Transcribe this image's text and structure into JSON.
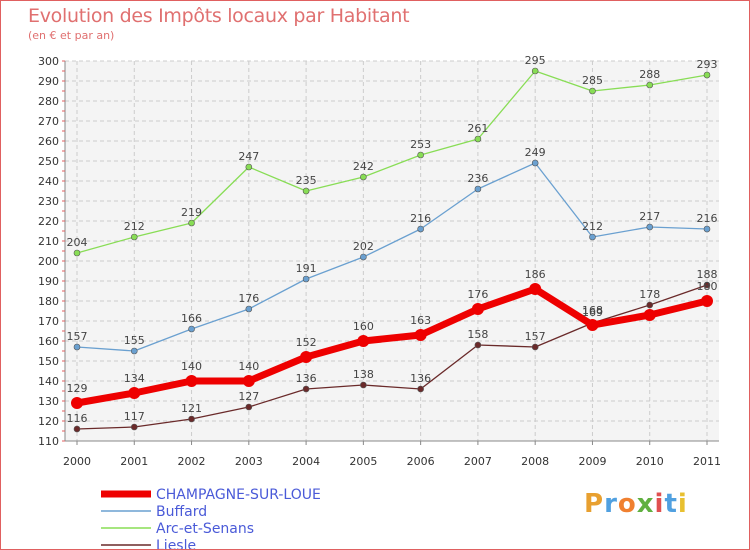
{
  "title": "Evolution des Impôts locaux par Habitant",
  "subtitle": "(en € et par an)",
  "logo": {
    "text": "Proxiti",
    "colors": [
      "#e8a030",
      "#50a0e0",
      "#f08030",
      "#60b040",
      "#e05050",
      "#50a0e0",
      "#e8c030"
    ]
  },
  "chart_data": {
    "type": "line",
    "title": "Evolution des Impôts locaux par Habitant",
    "subtitle": "(en € et par an)",
    "xlabel": "",
    "ylabel": "",
    "x": [
      "2000",
      "2001",
      "2002",
      "2003",
      "2004",
      "2005",
      "2006",
      "2007",
      "2008",
      "2009",
      "2010",
      "2011"
    ],
    "ylim": [
      110,
      300
    ],
    "yticks": [
      110,
      120,
      130,
      140,
      150,
      160,
      170,
      180,
      190,
      200,
      210,
      220,
      230,
      240,
      250,
      260,
      270,
      280,
      290,
      300
    ],
    "grid": true,
    "legend_position": "bottom-left",
    "series": [
      {
        "name": "CHAMPAGNE-SUR-LOUE",
        "color": "#ee0000",
        "emphasis": true,
        "values": [
          129,
          134,
          140,
          140,
          152,
          160,
          163,
          176,
          186,
          168,
          173,
          180
        ],
        "labels": [
          "129",
          "134",
          "140",
          "140",
          "152",
          "160",
          "163",
          "176",
          "186",
          "168",
          "",
          "180"
        ]
      },
      {
        "name": "Buffard",
        "color": "#6aa0d0",
        "emphasis": false,
        "values": [
          157,
          155,
          166,
          176,
          191,
          202,
          216,
          236,
          249,
          212,
          217,
          216
        ],
        "labels": [
          "157",
          "155",
          "166",
          "176",
          "191",
          "202",
          "216",
          "236",
          "249",
          "212",
          "217",
          "216"
        ]
      },
      {
        "name": "Arc-et-Senans",
        "color": "#88dd55",
        "emphasis": false,
        "values": [
          204,
          212,
          219,
          247,
          235,
          242,
          253,
          261,
          295,
          285,
          288,
          293
        ],
        "labels": [
          "204",
          "212",
          "219",
          "247",
          "235",
          "242",
          "253",
          "261",
          "295",
          "285",
          "288",
          "293"
        ]
      },
      {
        "name": "Liesle",
        "color": "#6a2a2a",
        "emphasis": false,
        "values": [
          116,
          117,
          121,
          127,
          136,
          138,
          136,
          158,
          157,
          169,
          178,
          188
        ],
        "labels": [
          "116",
          "117",
          "121",
          "127",
          "136",
          "138",
          "136",
          "158",
          "157",
          "169",
          "178",
          "188"
        ]
      }
    ]
  }
}
